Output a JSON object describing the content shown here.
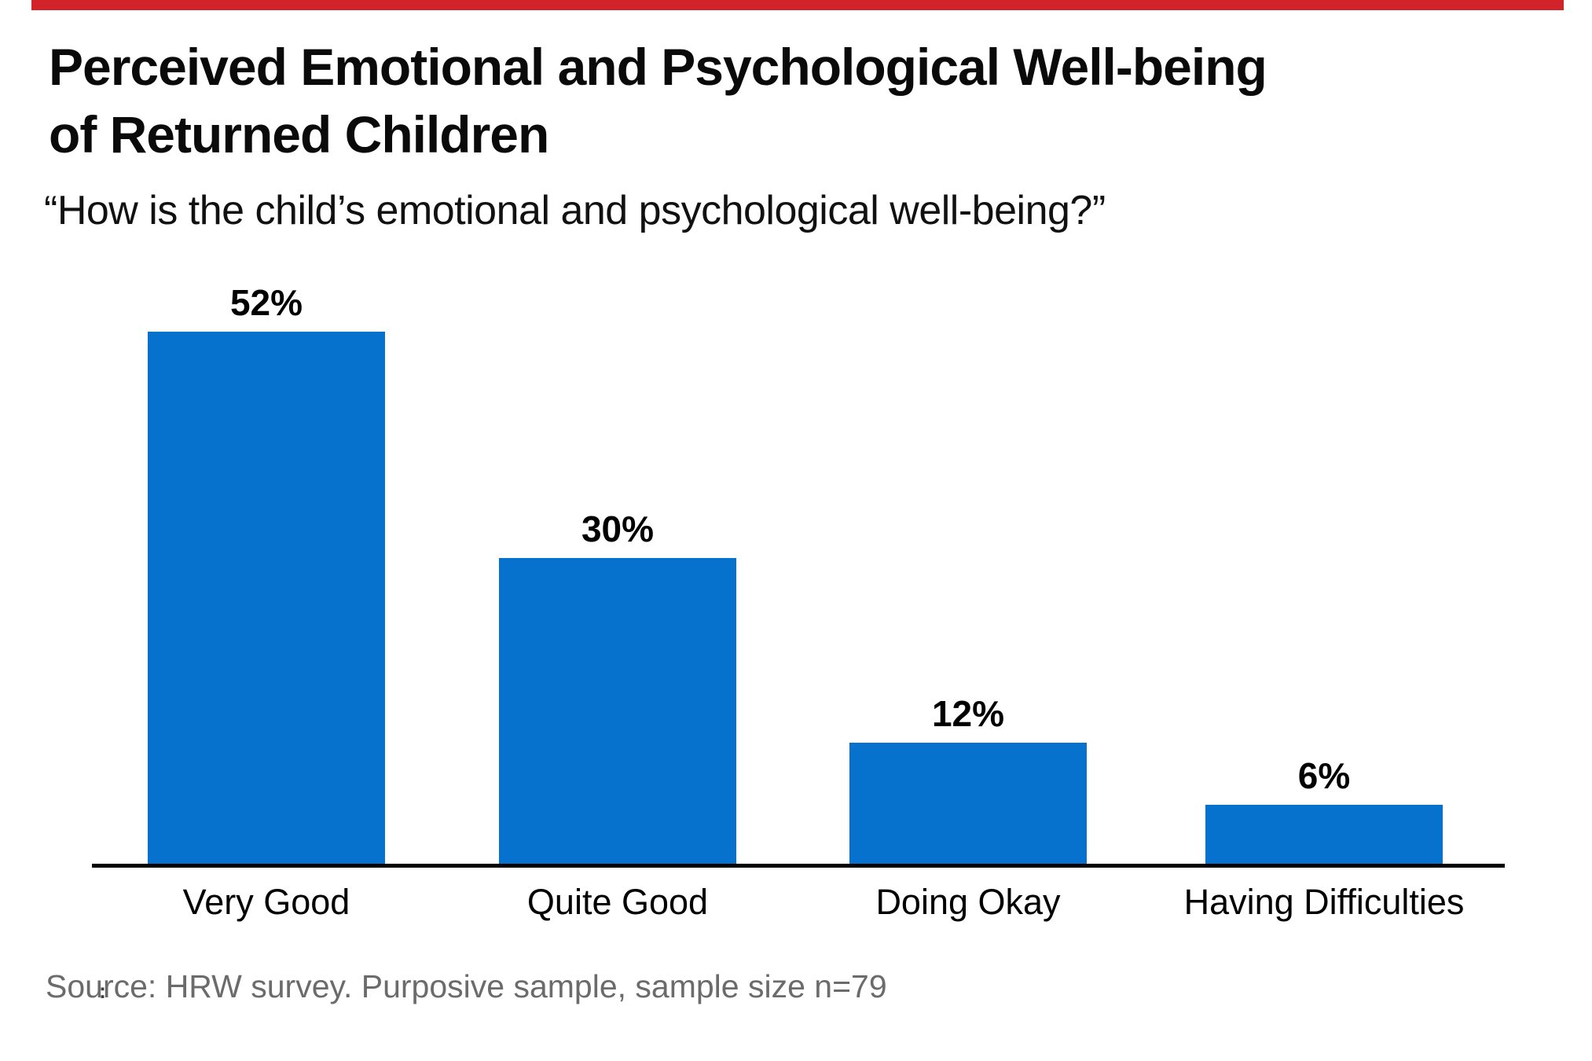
{
  "header": {
    "title_line1": "Perceived Emotional and Psychological Well-being",
    "title_line2": "of Returned Children",
    "subtitle": "“How is the child’s emotional and psychological well-being?”"
  },
  "chart_data": {
    "type": "bar",
    "title": "Perceived Emotional and Psychological Well-being of Returned Children",
    "subtitle": "“How is the child’s emotional and psychological well-being?”",
    "categories": [
      "Very Good",
      "Quite Good",
      "Doing Okay",
      "Having Difficulties"
    ],
    "values": [
      52,
      30,
      12,
      6
    ],
    "value_labels": [
      "52%",
      "30%",
      "12%",
      "6%"
    ],
    "unit": "percent",
    "xlabel": "",
    "ylabel": "",
    "ylim": [
      0,
      55
    ],
    "grid": false,
    "legend": false,
    "value_label_position": "above-bars",
    "bar_color": "#0672CE",
    "axis_color": "#000000"
  },
  "footer": {
    "source": "Source: HRW survey. Purposive sample, sample size n=79",
    "stray_mark": ":"
  },
  "style": {
    "accent_bar_color": "#D2232A",
    "source_color": "#6B6B6B",
    "background": "#FFFFFF"
  }
}
